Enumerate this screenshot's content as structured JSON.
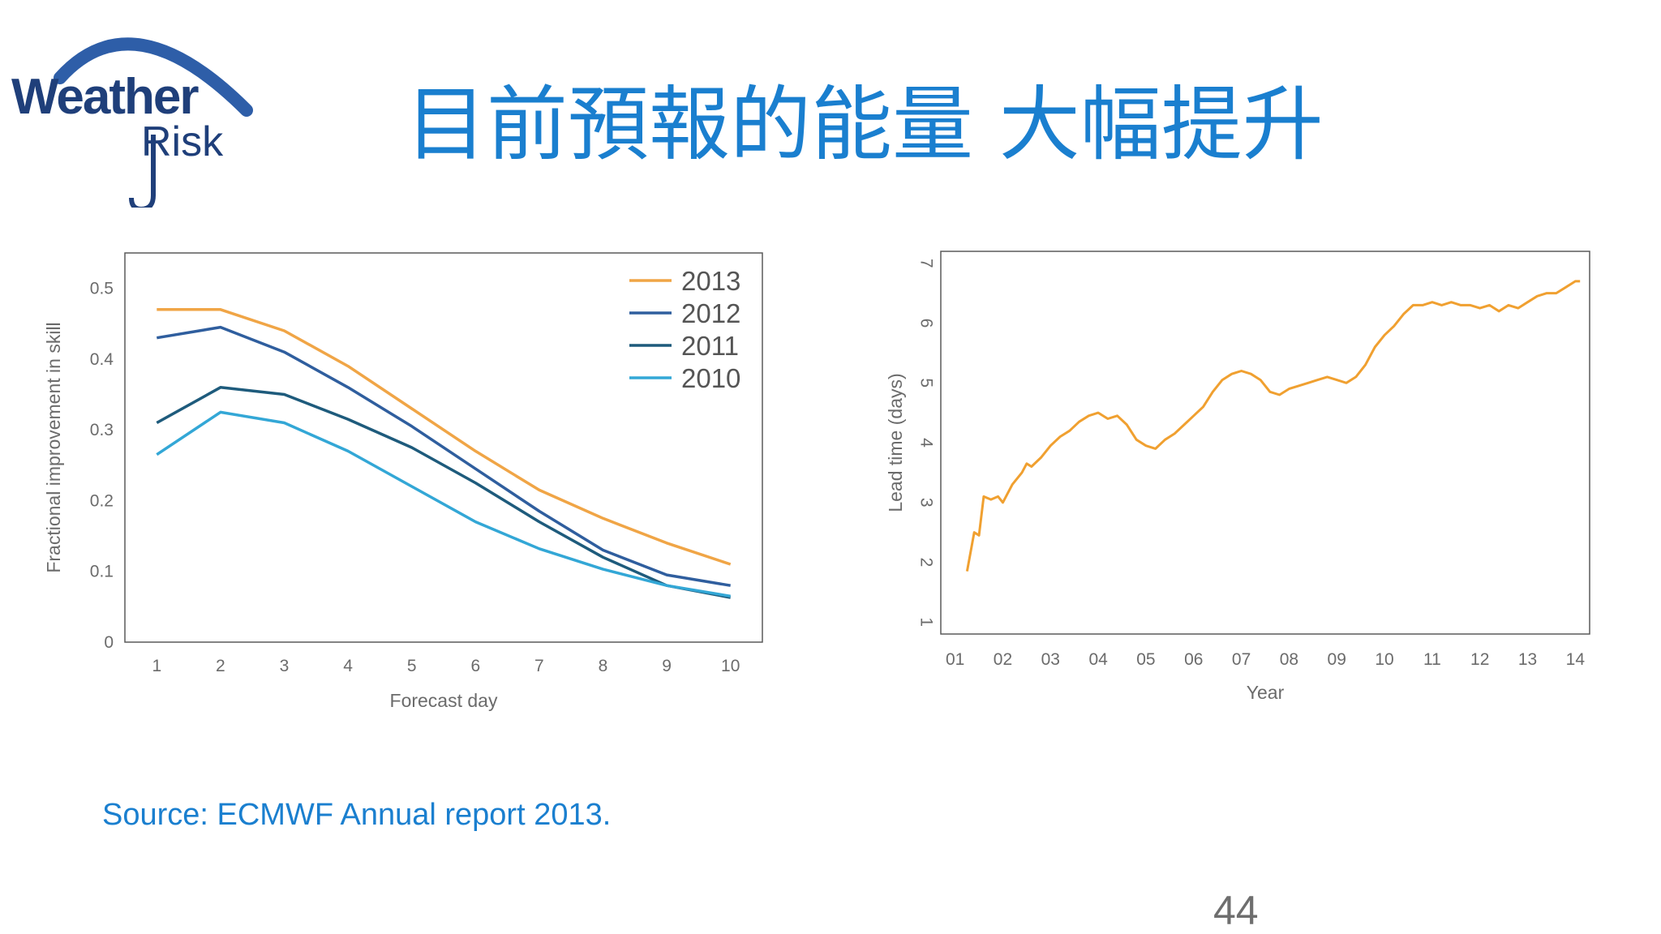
{
  "title": "目前預報的能量 大幅提升",
  "logo": {
    "line1": "Weather",
    "line2": "Risk",
    "arc_color": "#2e5ea8",
    "text_color": "#1f3f7a"
  },
  "source": "Source: ECMWF  Annual report 2013.",
  "page_number": "44",
  "chart_data": [
    {
      "type": "line",
      "xlabel": "Forecast day",
      "ylabel": "Fractional improvement in skill",
      "x": [
        1,
        2,
        3,
        4,
        5,
        6,
        7,
        8,
        9,
        10
      ],
      "xlim": [
        0.5,
        10.5
      ],
      "ylim": [
        0,
        0.55
      ],
      "yticks": [
        0,
        0.1,
        0.2,
        0.3,
        0.4,
        0.5
      ],
      "yticklabels": [
        "0",
        "0.1",
        "0.2",
        "0.3",
        "0.4",
        "0.5"
      ],
      "legend_position": "top-right",
      "series": [
        {
          "name": "2013",
          "color": "#f0a546",
          "values": [
            0.47,
            0.47,
            0.44,
            0.39,
            0.33,
            0.27,
            0.215,
            0.175,
            0.14,
            0.11
          ]
        },
        {
          "name": "2012",
          "color": "#2f5e9e",
          "values": [
            0.43,
            0.445,
            0.41,
            0.36,
            0.305,
            0.245,
            0.185,
            0.13,
            0.095,
            0.08
          ]
        },
        {
          "name": "2011",
          "color": "#1e5b7c",
          "values": [
            0.31,
            0.36,
            0.35,
            0.315,
            0.275,
            0.225,
            0.17,
            0.12,
            0.08,
            0.063
          ]
        },
        {
          "name": "2010",
          "color": "#33a7d6",
          "values": [
            0.265,
            0.325,
            0.31,
            0.27,
            0.22,
            0.17,
            0.132,
            0.103,
            0.08,
            0.065
          ]
        }
      ]
    },
    {
      "type": "line",
      "xlabel": "Year",
      "ylabel": "Lead time (days)",
      "xlim": [
        0.7,
        14.3
      ],
      "ylim": [
        0.8,
        7.2
      ],
      "xticks": [
        1,
        2,
        3,
        4,
        5,
        6,
        7,
        8,
        9,
        10,
        11,
        12,
        13,
        14
      ],
      "xticklabels": [
        "01",
        "02",
        "03",
        "04",
        "05",
        "06",
        "07",
        "08",
        "09",
        "10",
        "11",
        "12",
        "13",
        "14"
      ],
      "yticks": [
        1,
        2,
        3,
        4,
        5,
        6,
        7
      ],
      "yticklabels": [
        "1",
        "2",
        "3",
        "4",
        "5",
        "6",
        "7"
      ],
      "series": [
        {
          "color": "#f0a030",
          "x": [
            1.25,
            1.4,
            1.5,
            1.6,
            1.75,
            1.9,
            2.0,
            2.2,
            2.4,
            2.5,
            2.6,
            2.8,
            3.0,
            3.2,
            3.4,
            3.6,
            3.8,
            4.0,
            4.2,
            4.4,
            4.6,
            4.8,
            5.0,
            5.2,
            5.4,
            5.6,
            5.8,
            6.0,
            6.2,
            6.4,
            6.6,
            6.8,
            7.0,
            7.2,
            7.4,
            7.6,
            7.8,
            8.0,
            8.2,
            8.4,
            8.6,
            8.8,
            9.0,
            9.2,
            9.4,
            9.6,
            9.8,
            10.0,
            10.2,
            10.4,
            10.6,
            10.8,
            11.0,
            11.2,
            11.4,
            11.6,
            11.8,
            12.0,
            12.2,
            12.4,
            12.6,
            12.8,
            13.0,
            13.2,
            13.4,
            13.6,
            13.8,
            14.0,
            14.1
          ],
          "values": [
            1.85,
            2.5,
            2.45,
            3.1,
            3.05,
            3.1,
            3.0,
            3.3,
            3.5,
            3.65,
            3.6,
            3.75,
            3.95,
            4.1,
            4.2,
            4.35,
            4.45,
            4.5,
            4.4,
            4.45,
            4.3,
            4.05,
            3.95,
            3.9,
            4.05,
            4.15,
            4.3,
            4.45,
            4.6,
            4.85,
            5.05,
            5.15,
            5.2,
            5.15,
            5.05,
            4.85,
            4.8,
            4.9,
            4.95,
            5.0,
            5.05,
            5.1,
            5.05,
            5.0,
            5.1,
            5.3,
            5.6,
            5.8,
            5.95,
            6.15,
            6.3,
            6.3,
            6.35,
            6.3,
            6.35,
            6.3,
            6.3,
            6.25,
            6.3,
            6.2,
            6.3,
            6.25,
            6.35,
            6.45,
            6.5,
            6.5,
            6.6,
            6.7,
            6.7
          ]
        }
      ]
    }
  ]
}
